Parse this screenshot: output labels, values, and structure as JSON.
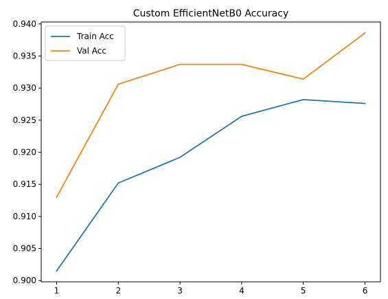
{
  "chart_data": {
    "type": "line",
    "title": "Custom EfficientNetB0 Accuracy",
    "xlabel": "",
    "ylabel": "",
    "x": [
      1,
      2,
      3,
      4,
      5,
      6
    ],
    "xlim": [
      0.75,
      6.25
    ],
    "ylim": [
      0.8998,
      0.9403
    ],
    "x_ticks": [
      1,
      2,
      3,
      4,
      5,
      6
    ],
    "y_ticks": [
      0.9,
      0.905,
      0.91,
      0.915,
      0.92,
      0.925,
      0.93,
      0.935,
      0.94
    ],
    "y_tick_labels": [
      "0.900",
      "0.905",
      "0.910",
      "0.915",
      "0.920",
      "0.925",
      "0.930",
      "0.935",
      "0.940"
    ],
    "grid": false,
    "legend_position": "top-left",
    "series": [
      {
        "name": "Train Acc",
        "color": "#1f77b4",
        "values": [
          0.9015,
          0.9152,
          0.9192,
          0.9256,
          0.9282,
          0.9276
        ]
      },
      {
        "name": "Val Acc",
        "color": "#ff7f0e",
        "values": [
          0.913,
          0.9306,
          0.9337,
          0.9337,
          0.9314,
          0.9386
        ]
      }
    ]
  }
}
